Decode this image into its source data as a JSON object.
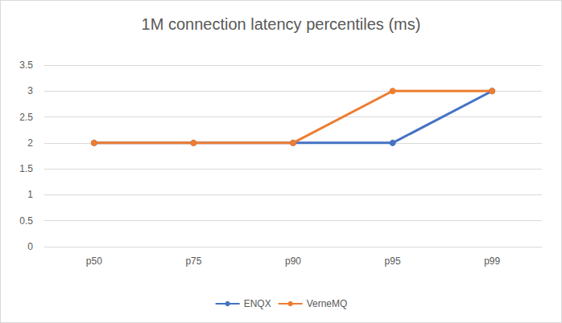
{
  "chart_data": {
    "type": "line",
    "title": "1M connection latency percentiles (ms)",
    "categories": [
      "p50",
      "p75",
      "p90",
      "p95",
      "p99"
    ],
    "series": [
      {
        "name": "ENQX",
        "color": "#4472c4",
        "values": [
          2,
          2,
          2,
          2,
          3
        ]
      },
      {
        "name": "VerneMQ",
        "color": "#ed7d31",
        "values": [
          2,
          2,
          2,
          3,
          3
        ]
      }
    ],
    "ylim": [
      0,
      3.5
    ],
    "yticks": [
      0,
      0.5,
      1,
      1.5,
      2,
      2.5,
      3,
      3.5
    ],
    "grid": true,
    "legend": "bottom",
    "marker": "circle"
  }
}
